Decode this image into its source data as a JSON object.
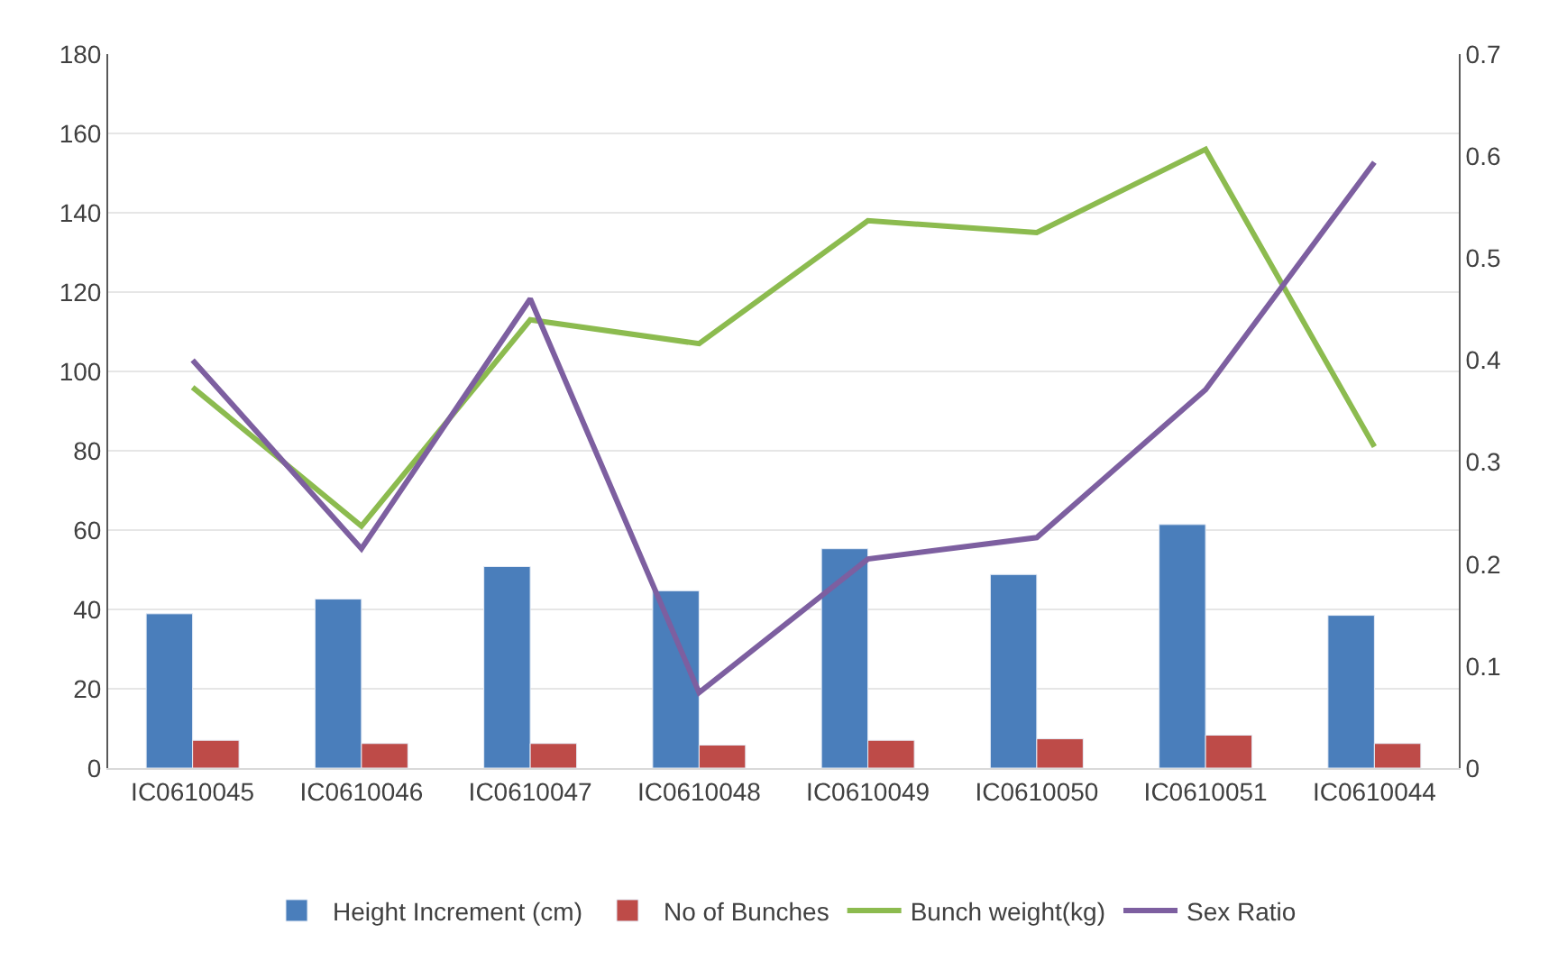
{
  "chart_data": {
    "type": "bar",
    "categories": [
      "IC0610045",
      "IC0610046",
      "IC0610047",
      "IC0610048",
      "IC0610049",
      "IC0610050",
      "IC0610051",
      "IC0610044"
    ],
    "series": [
      {
        "name": "Height Increment (cm)",
        "color": "#4a7ebb",
        "values": [
          38.9,
          42.6,
          50.8,
          44.7,
          55.3,
          48.8,
          61.4,
          38.5
        ]
      },
      {
        "name": "No of Bunches",
        "color": "#be4b48",
        "values": [
          7.0,
          6.2,
          6.2,
          5.8,
          7.0,
          7.4,
          8.3,
          6.2
        ]
      },
      {
        "name": "Bunch weight(kg)",
        "type": "line",
        "color": "#8cbb4f",
        "values": [
          96,
          61,
          113,
          107,
          138,
          135,
          156,
          81
        ]
      },
      {
        "name": "Sex Ratio",
        "type": "line",
        "axis": "y2",
        "color": "#7d5fa0",
        "values": [
          0.4,
          0.215,
          0.46,
          0.074,
          0.205,
          0.226,
          0.371,
          0.594
        ]
      }
    ],
    "ylim": [
      0,
      180
    ],
    "yticks": [
      0,
      20,
      40,
      60,
      80,
      100,
      120,
      140,
      160,
      180
    ],
    "y2lim": [
      0,
      0.7
    ],
    "y2ticks": [
      0,
      0.1,
      0.2,
      0.3,
      0.4,
      0.5,
      0.6,
      0.7
    ],
    "grid": "y",
    "legend": "bottom",
    "marker": "none"
  }
}
